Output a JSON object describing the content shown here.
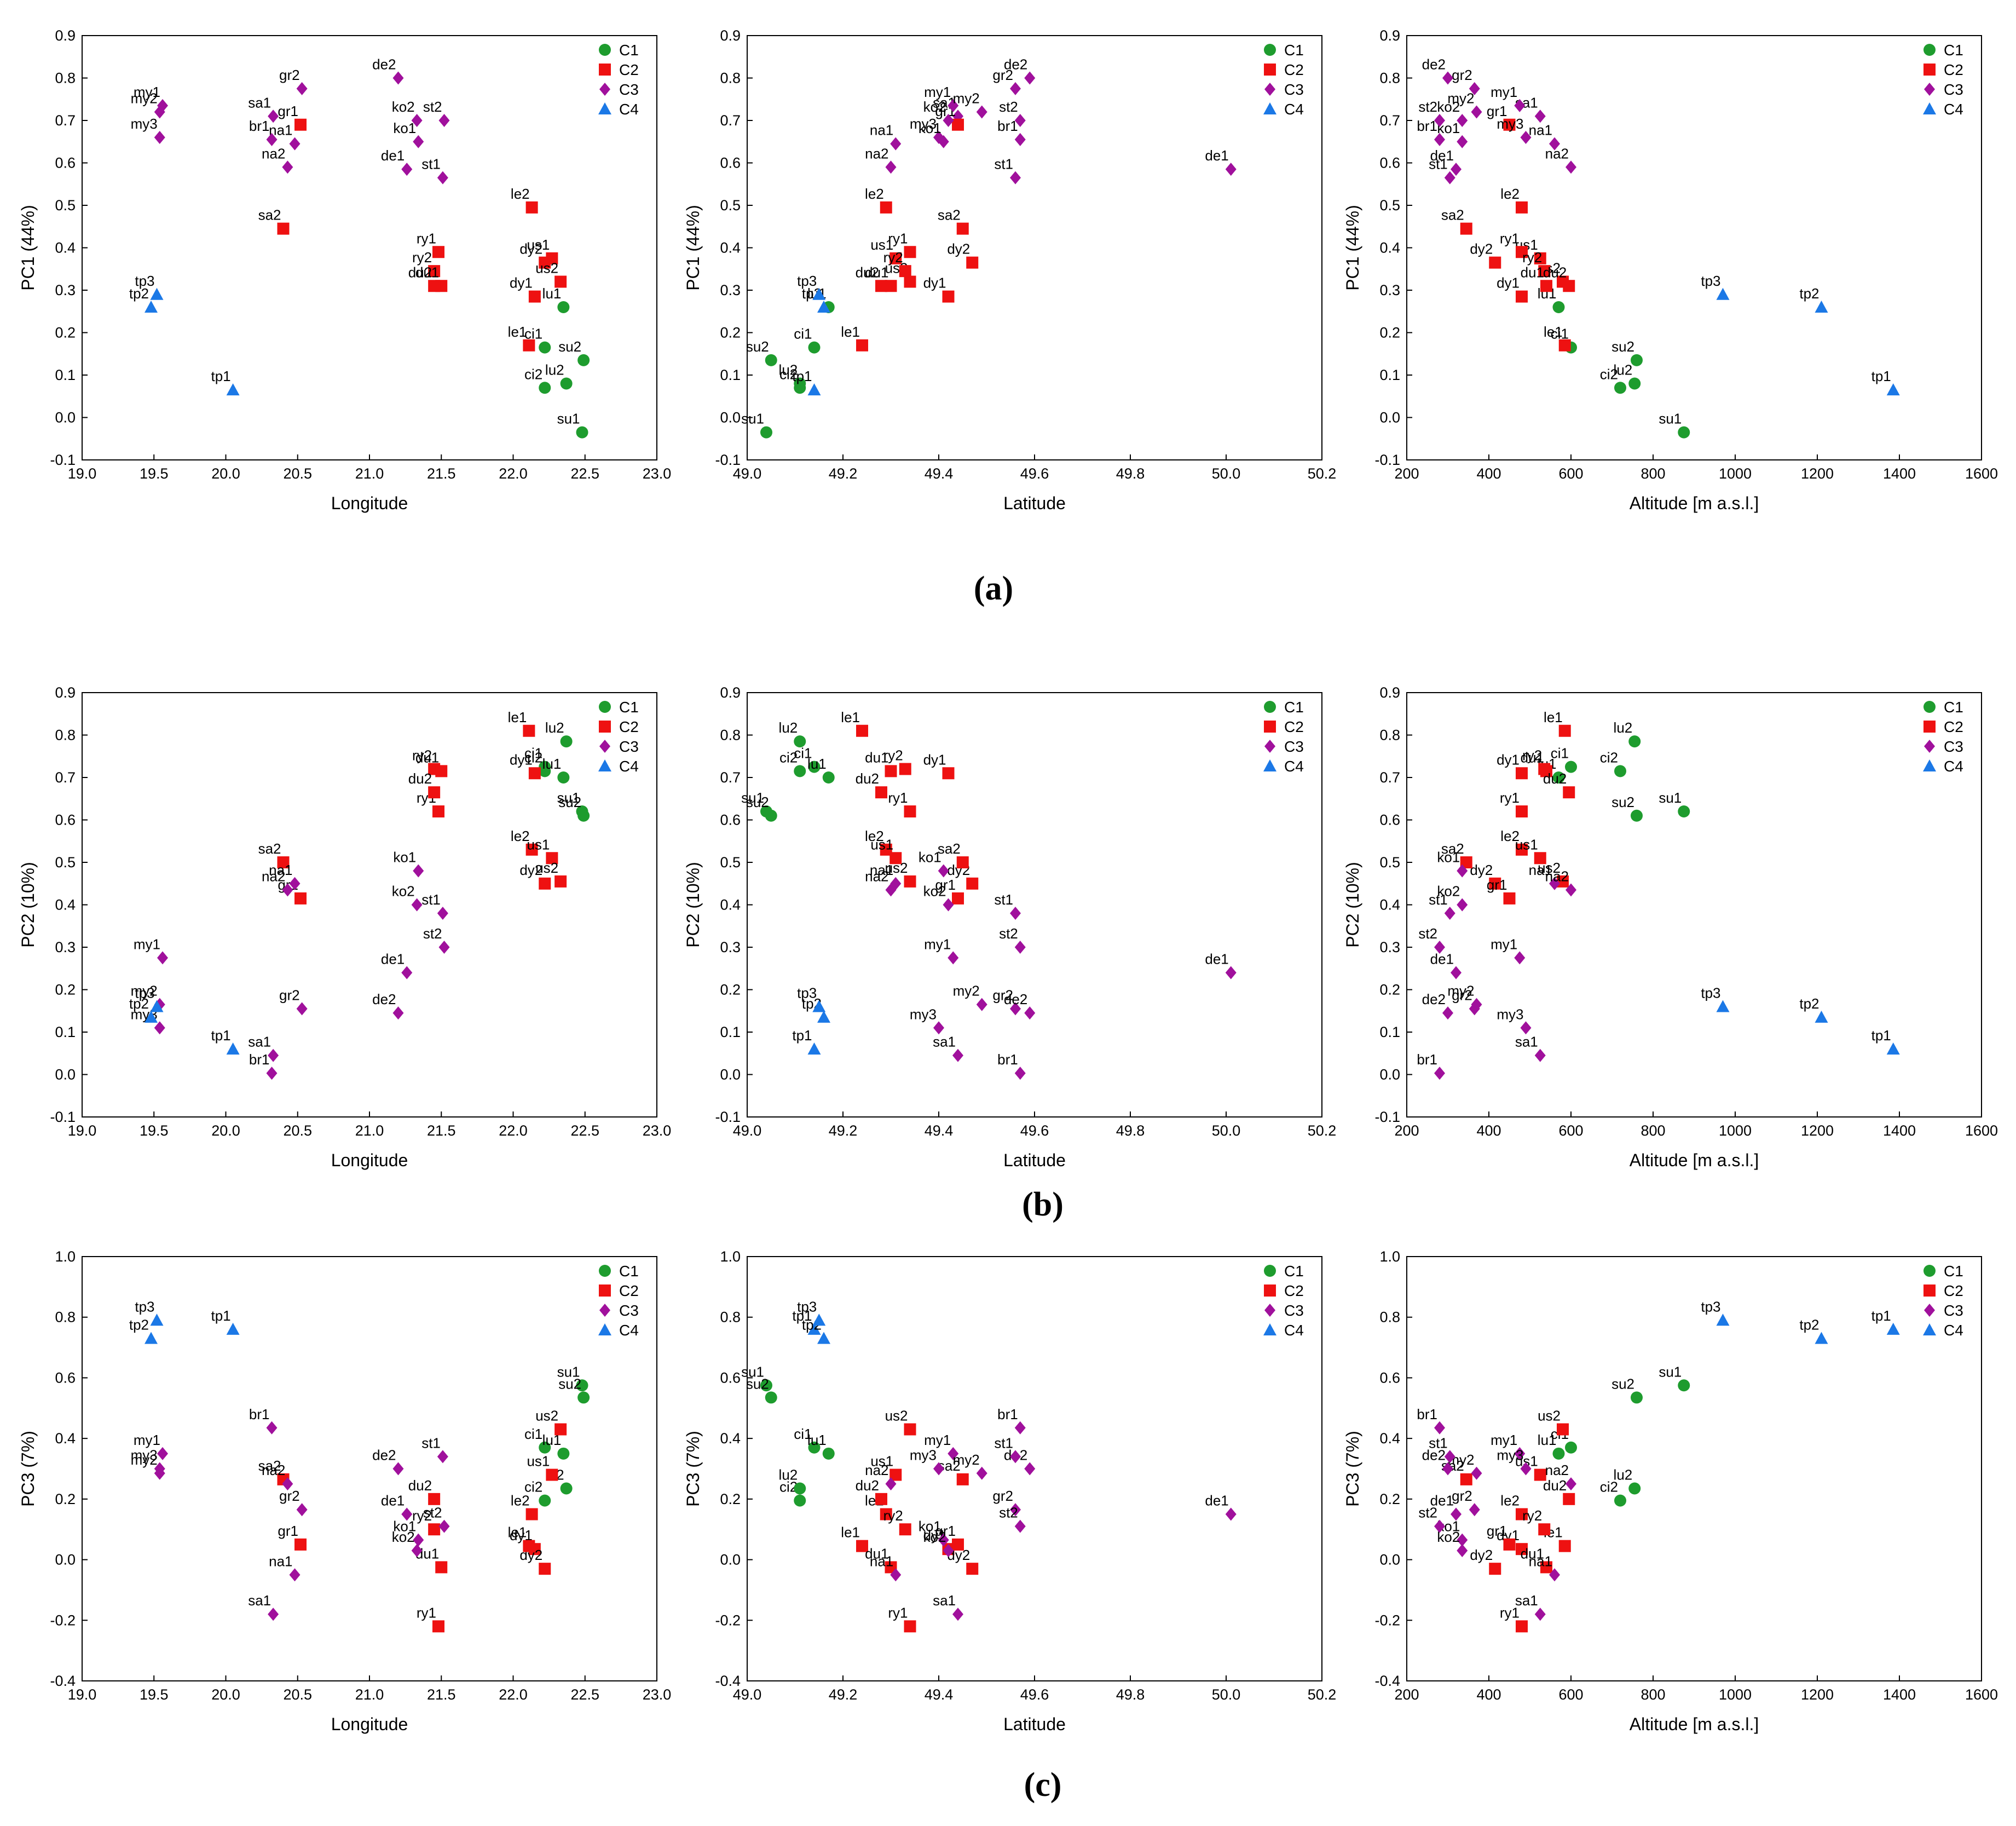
{
  "colors": {
    "C1": "#1e9c2e",
    "C2": "#ee1111",
    "C3": "#a0109c",
    "C4": "#1b78e6"
  },
  "legend": [
    {
      "name": "C1",
      "marker": "circle"
    },
    {
      "name": "C2",
      "marker": "square"
    },
    {
      "name": "C3",
      "marker": "diamond"
    },
    {
      "name": "C4",
      "marker": "triangle"
    }
  ],
  "panel_labels": [
    "(a)",
    "(b)",
    "(c)"
  ],
  "sites": [
    {
      "id": "ci1",
      "group": "C1",
      "lon": 22.22,
      "lat": 49.14,
      "alt": 600
    },
    {
      "id": "ci2",
      "group": "C1",
      "lon": 22.22,
      "lat": 49.11,
      "alt": 720
    },
    {
      "id": "lu1",
      "group": "C1",
      "lon": 22.35,
      "lat": 49.17,
      "alt": 570
    },
    {
      "id": "lu2",
      "group": "C1",
      "lon": 22.37,
      "lat": 49.11,
      "alt": 755
    },
    {
      "id": "su1",
      "group": "C1",
      "lon": 22.48,
      "lat": 49.04,
      "alt": 875
    },
    {
      "id": "su2",
      "group": "C1",
      "lon": 22.49,
      "lat": 49.05,
      "alt": 760
    },
    {
      "id": "dy1",
      "group": "C2",
      "lon": 22.15,
      "lat": 49.42,
      "alt": 480
    },
    {
      "id": "dy2",
      "group": "C2",
      "lon": 22.22,
      "lat": 49.47,
      "alt": 415
    },
    {
      "id": "le1",
      "group": "C2",
      "lon": 22.11,
      "lat": 49.24,
      "alt": 585
    },
    {
      "id": "le2",
      "group": "C2",
      "lon": 22.13,
      "lat": 49.29,
      "alt": 480
    },
    {
      "id": "us1",
      "group": "C2",
      "lon": 22.27,
      "lat": 49.31,
      "alt": 525
    },
    {
      "id": "us2",
      "group": "C2",
      "lon": 22.33,
      "lat": 49.34,
      "alt": 580
    },
    {
      "id": "ry1",
      "group": "C2",
      "lon": 21.48,
      "lat": 49.34,
      "alt": 480
    },
    {
      "id": "ry2",
      "group": "C2",
      "lon": 21.45,
      "lat": 49.33,
      "alt": 535
    },
    {
      "id": "du1",
      "group": "C2",
      "lon": 21.5,
      "lat": 49.3,
      "alt": 540
    },
    {
      "id": "du2",
      "group": "C2",
      "lon": 21.45,
      "lat": 49.28,
      "alt": 595
    },
    {
      "id": "sa1",
      "group": "C3",
      "lon": 20.33,
      "lat": 49.44,
      "alt": 525
    },
    {
      "id": "sa2",
      "group": "C2",
      "lon": 20.4,
      "lat": 49.45,
      "alt": 345
    },
    {
      "id": "gr1",
      "group": "C2",
      "lon": 20.52,
      "lat": 49.44,
      "alt": 450
    },
    {
      "id": "gr2",
      "group": "C3",
      "lon": 20.53,
      "lat": 49.56,
      "alt": 365
    },
    {
      "id": "na1",
      "group": "C3",
      "lon": 20.48,
      "lat": 49.31,
      "alt": 560
    },
    {
      "id": "na2",
      "group": "C3",
      "lon": 20.43,
      "lat": 49.3,
      "alt": 600
    },
    {
      "id": "br1",
      "group": "C3",
      "lon": 20.32,
      "lat": 49.57,
      "alt": 280
    },
    {
      "id": "my1",
      "group": "C3",
      "lon": 19.56,
      "lat": 49.43,
      "alt": 475
    },
    {
      "id": "my2",
      "group": "C3",
      "lon": 19.54,
      "lat": 49.49,
      "alt": 370
    },
    {
      "id": "my3",
      "group": "C3",
      "lon": 19.54,
      "lat": 49.4,
      "alt": 490
    },
    {
      "id": "de1",
      "group": "C3",
      "lon": 21.26,
      "lat": 50.01,
      "alt": 320
    },
    {
      "id": "de2",
      "group": "C3",
      "lon": 21.2,
      "lat": 49.59,
      "alt": 300
    },
    {
      "id": "ko1",
      "group": "C3",
      "lon": 21.34,
      "lat": 49.41,
      "alt": 335
    },
    {
      "id": "ko2",
      "group": "C3",
      "lon": 21.33,
      "lat": 49.42,
      "alt": 335
    },
    {
      "id": "st1",
      "group": "C3",
      "lon": 21.51,
      "lat": 49.56,
      "alt": 305
    },
    {
      "id": "st2",
      "group": "C3",
      "lon": 21.52,
      "lat": 49.57,
      "alt": 280
    },
    {
      "id": "tp1",
      "group": "C4",
      "lon": 20.05,
      "lat": 49.14,
      "alt": 1385
    },
    {
      "id": "tp2",
      "group": "C4",
      "lon": 19.48,
      "lat": 49.16,
      "alt": 1210
    },
    {
      "id": "tp3",
      "group": "C4",
      "lon": 19.52,
      "lat": 49.15,
      "alt": 970
    }
  ],
  "rows": [
    {
      "key": "pc1",
      "ylabel": "PC1 (44%)",
      "ylim": [
        -0.1,
        0.9
      ],
      "yticks": [
        "-0.1",
        "0.0",
        "0.1",
        "0.2",
        "0.3",
        "0.4",
        "0.5",
        "0.6",
        "0.7",
        "0.8",
        "0.9"
      ]
    },
    {
      "key": "pc2",
      "ylabel": "PC2 (10%)",
      "ylim": [
        -0.1,
        0.9
      ],
      "yticks": [
        "-0.1",
        "0.0",
        "0.1",
        "0.2",
        "0.3",
        "0.4",
        "0.5",
        "0.6",
        "0.7",
        "0.8",
        "0.9"
      ]
    },
    {
      "key": "pc3",
      "ylabel": "PC3 (7%)",
      "ylim": [
        -0.4,
        1.0
      ],
      "yticks": [
        "-0.4",
        "-0.2",
        "0.0",
        "0.2",
        "0.4",
        "0.6",
        "0.8",
        "1.0"
      ]
    }
  ],
  "columns": [
    {
      "key": "lon",
      "xlabel": "Longitude",
      "xlim": [
        19.0,
        23.0
      ],
      "xticks": [
        "19.0",
        "19.5",
        "20.0",
        "20.5",
        "21.0",
        "21.5",
        "22.0",
        "22.5",
        "23.0"
      ]
    },
    {
      "key": "lat",
      "xlabel": "Latitude",
      "xlim": [
        49.0,
        50.2
      ],
      "xticks": [
        "49.0",
        "49.2",
        "49.4",
        "49.6",
        "49.8",
        "50.0",
        "50.2"
      ]
    },
    {
      "key": "alt",
      "xlabel": "Altitude [m a.s.l.]",
      "xlim": [
        200,
        1600
      ],
      "xticks": [
        "200",
        "400",
        "600",
        "800",
        "1000",
        "1200",
        "1400",
        "1600"
      ]
    }
  ],
  "chart_data": [
    {
      "type": "scatter",
      "panel": "(a)",
      "title": "",
      "ylabel": "PC1 (44%)",
      "xlabels": [
        "Longitude",
        "Latitude",
        "Altitude [m a.s.l.]"
      ],
      "values": {
        "ci1": 0.165,
        "ci2": 0.07,
        "lu1": 0.26,
        "lu2": 0.08,
        "su1": -0.035,
        "su2": 0.135,
        "dy1": 0.285,
        "dy2": 0.365,
        "le1": 0.17,
        "le2": 0.495,
        "us1": 0.375,
        "us2": 0.32,
        "ry1": 0.39,
        "ry2": 0.345,
        "du1": 0.31,
        "du2": 0.31,
        "sa1": 0.71,
        "sa2": 0.445,
        "gr1": 0.69,
        "gr2": 0.775,
        "na1": 0.645,
        "na2": 0.59,
        "br1": 0.655,
        "my1": 0.735,
        "my2": 0.72,
        "my3": 0.66,
        "de1": 0.585,
        "de2": 0.8,
        "ko1": 0.65,
        "ko2": 0.7,
        "st1": 0.565,
        "st2": 0.7,
        "tp1": 0.065,
        "tp2": 0.26,
        "tp3": 0.29
      }
    },
    {
      "type": "scatter",
      "panel": "(b)",
      "title": "",
      "ylabel": "PC2 (10%)",
      "xlabels": [
        "Longitude",
        "Latitude",
        "Altitude [m a.s.l.]"
      ],
      "values": {
        "ci1": 0.725,
        "ci2": 0.715,
        "lu1": 0.7,
        "lu2": 0.785,
        "su1": 0.62,
        "su2": 0.61,
        "dy1": 0.71,
        "dy2": 0.45,
        "le1": 0.81,
        "le2": 0.53,
        "us1": 0.51,
        "us2": 0.455,
        "ry1": 0.62,
        "ry2": 0.72,
        "du1": 0.715,
        "du2": 0.665,
        "sa1": 0.045,
        "sa2": 0.5,
        "gr1": 0.415,
        "gr2": 0.155,
        "na1": 0.45,
        "na2": 0.435,
        "br1": 0.003,
        "my1": 0.275,
        "my2": 0.165,
        "my3": 0.11,
        "de1": 0.24,
        "de2": 0.145,
        "ko1": 0.48,
        "ko2": 0.4,
        "st1": 0.38,
        "st2": 0.3,
        "tp1": 0.06,
        "tp2": 0.135,
        "tp3": 0.16
      }
    },
    {
      "type": "scatter",
      "panel": "(c)",
      "title": "",
      "ylabel": "PC3 (7%)",
      "xlabels": [
        "Longitude",
        "Latitude",
        "Altitude [m a.s.l.]"
      ],
      "values": {
        "ci1": 0.37,
        "ci2": 0.195,
        "lu1": 0.35,
        "lu2": 0.235,
        "su1": 0.575,
        "su2": 0.535,
        "dy1": 0.035,
        "dy2": -0.03,
        "le1": 0.045,
        "le2": 0.15,
        "us1": 0.28,
        "us2": 0.43,
        "ry1": -0.22,
        "ry2": 0.1,
        "du1": -0.025,
        "du2": 0.2,
        "sa1": -0.18,
        "sa2": 0.265,
        "gr1": 0.05,
        "gr2": 0.165,
        "na1": -0.05,
        "na2": 0.25,
        "br1": 0.435,
        "my1": 0.35,
        "my2": 0.285,
        "my3": 0.3,
        "de1": 0.15,
        "de2": 0.3,
        "ko1": 0.065,
        "ko2": 0.03,
        "st1": 0.34,
        "st2": 0.11,
        "tp1": 0.76,
        "tp2": 0.73,
        "tp3": 0.79
      }
    }
  ]
}
